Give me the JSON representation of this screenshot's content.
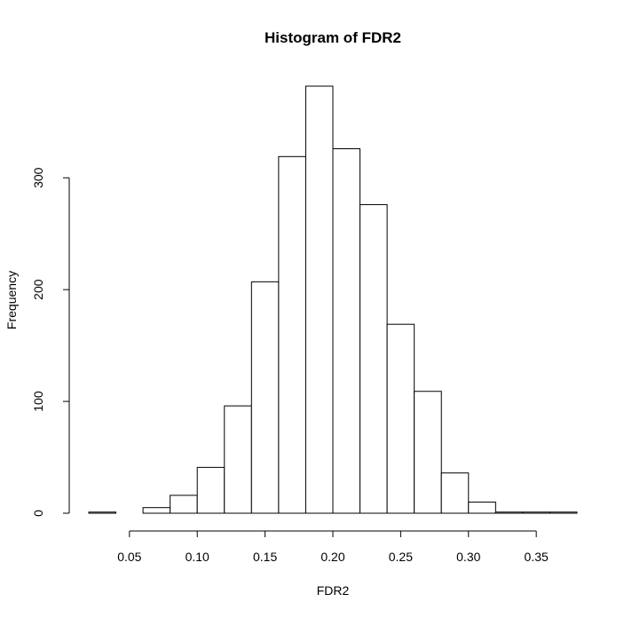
{
  "chart_data": {
    "type": "bar",
    "title": "Histogram of FDR2",
    "xlabel": "FDR2",
    "ylabel": "Frequency",
    "bin_width": 0.02,
    "bins": [
      {
        "start": 0.02,
        "end": 0.04,
        "count": 1
      },
      {
        "start": 0.04,
        "end": 0.06,
        "count": 0
      },
      {
        "start": 0.06,
        "end": 0.08,
        "count": 5
      },
      {
        "start": 0.08,
        "end": 0.1,
        "count": 16
      },
      {
        "start": 0.1,
        "end": 0.12,
        "count": 41
      },
      {
        "start": 0.12,
        "end": 0.14,
        "count": 96
      },
      {
        "start": 0.14,
        "end": 0.16,
        "count": 207
      },
      {
        "start": 0.16,
        "end": 0.18,
        "count": 319
      },
      {
        "start": 0.18,
        "end": 0.2,
        "count": 382
      },
      {
        "start": 0.2,
        "end": 0.22,
        "count": 326
      },
      {
        "start": 0.22,
        "end": 0.24,
        "count": 276
      },
      {
        "start": 0.24,
        "end": 0.26,
        "count": 169
      },
      {
        "start": 0.26,
        "end": 0.28,
        "count": 109
      },
      {
        "start": 0.28,
        "end": 0.3,
        "count": 36
      },
      {
        "start": 0.3,
        "end": 0.32,
        "count": 10
      },
      {
        "start": 0.32,
        "end": 0.34,
        "count": 1
      },
      {
        "start": 0.34,
        "end": 0.36,
        "count": 1
      },
      {
        "start": 0.36,
        "end": 0.38,
        "count": 1
      }
    ],
    "x_ticks": [
      0.05,
      0.1,
      0.15,
      0.2,
      0.25,
      0.3,
      0.35
    ],
    "x_tick_labels": [
      "0.05",
      "0.10",
      "0.15",
      "0.20",
      "0.25",
      "0.30",
      "0.35"
    ],
    "y_ticks": [
      0,
      100,
      200,
      300
    ],
    "y_tick_labels": [
      "0",
      "100",
      "200",
      "300"
    ],
    "xlim": [
      0.02,
      0.38
    ],
    "ylim": [
      0,
      382
    ],
    "grid": false,
    "legend": "none"
  }
}
